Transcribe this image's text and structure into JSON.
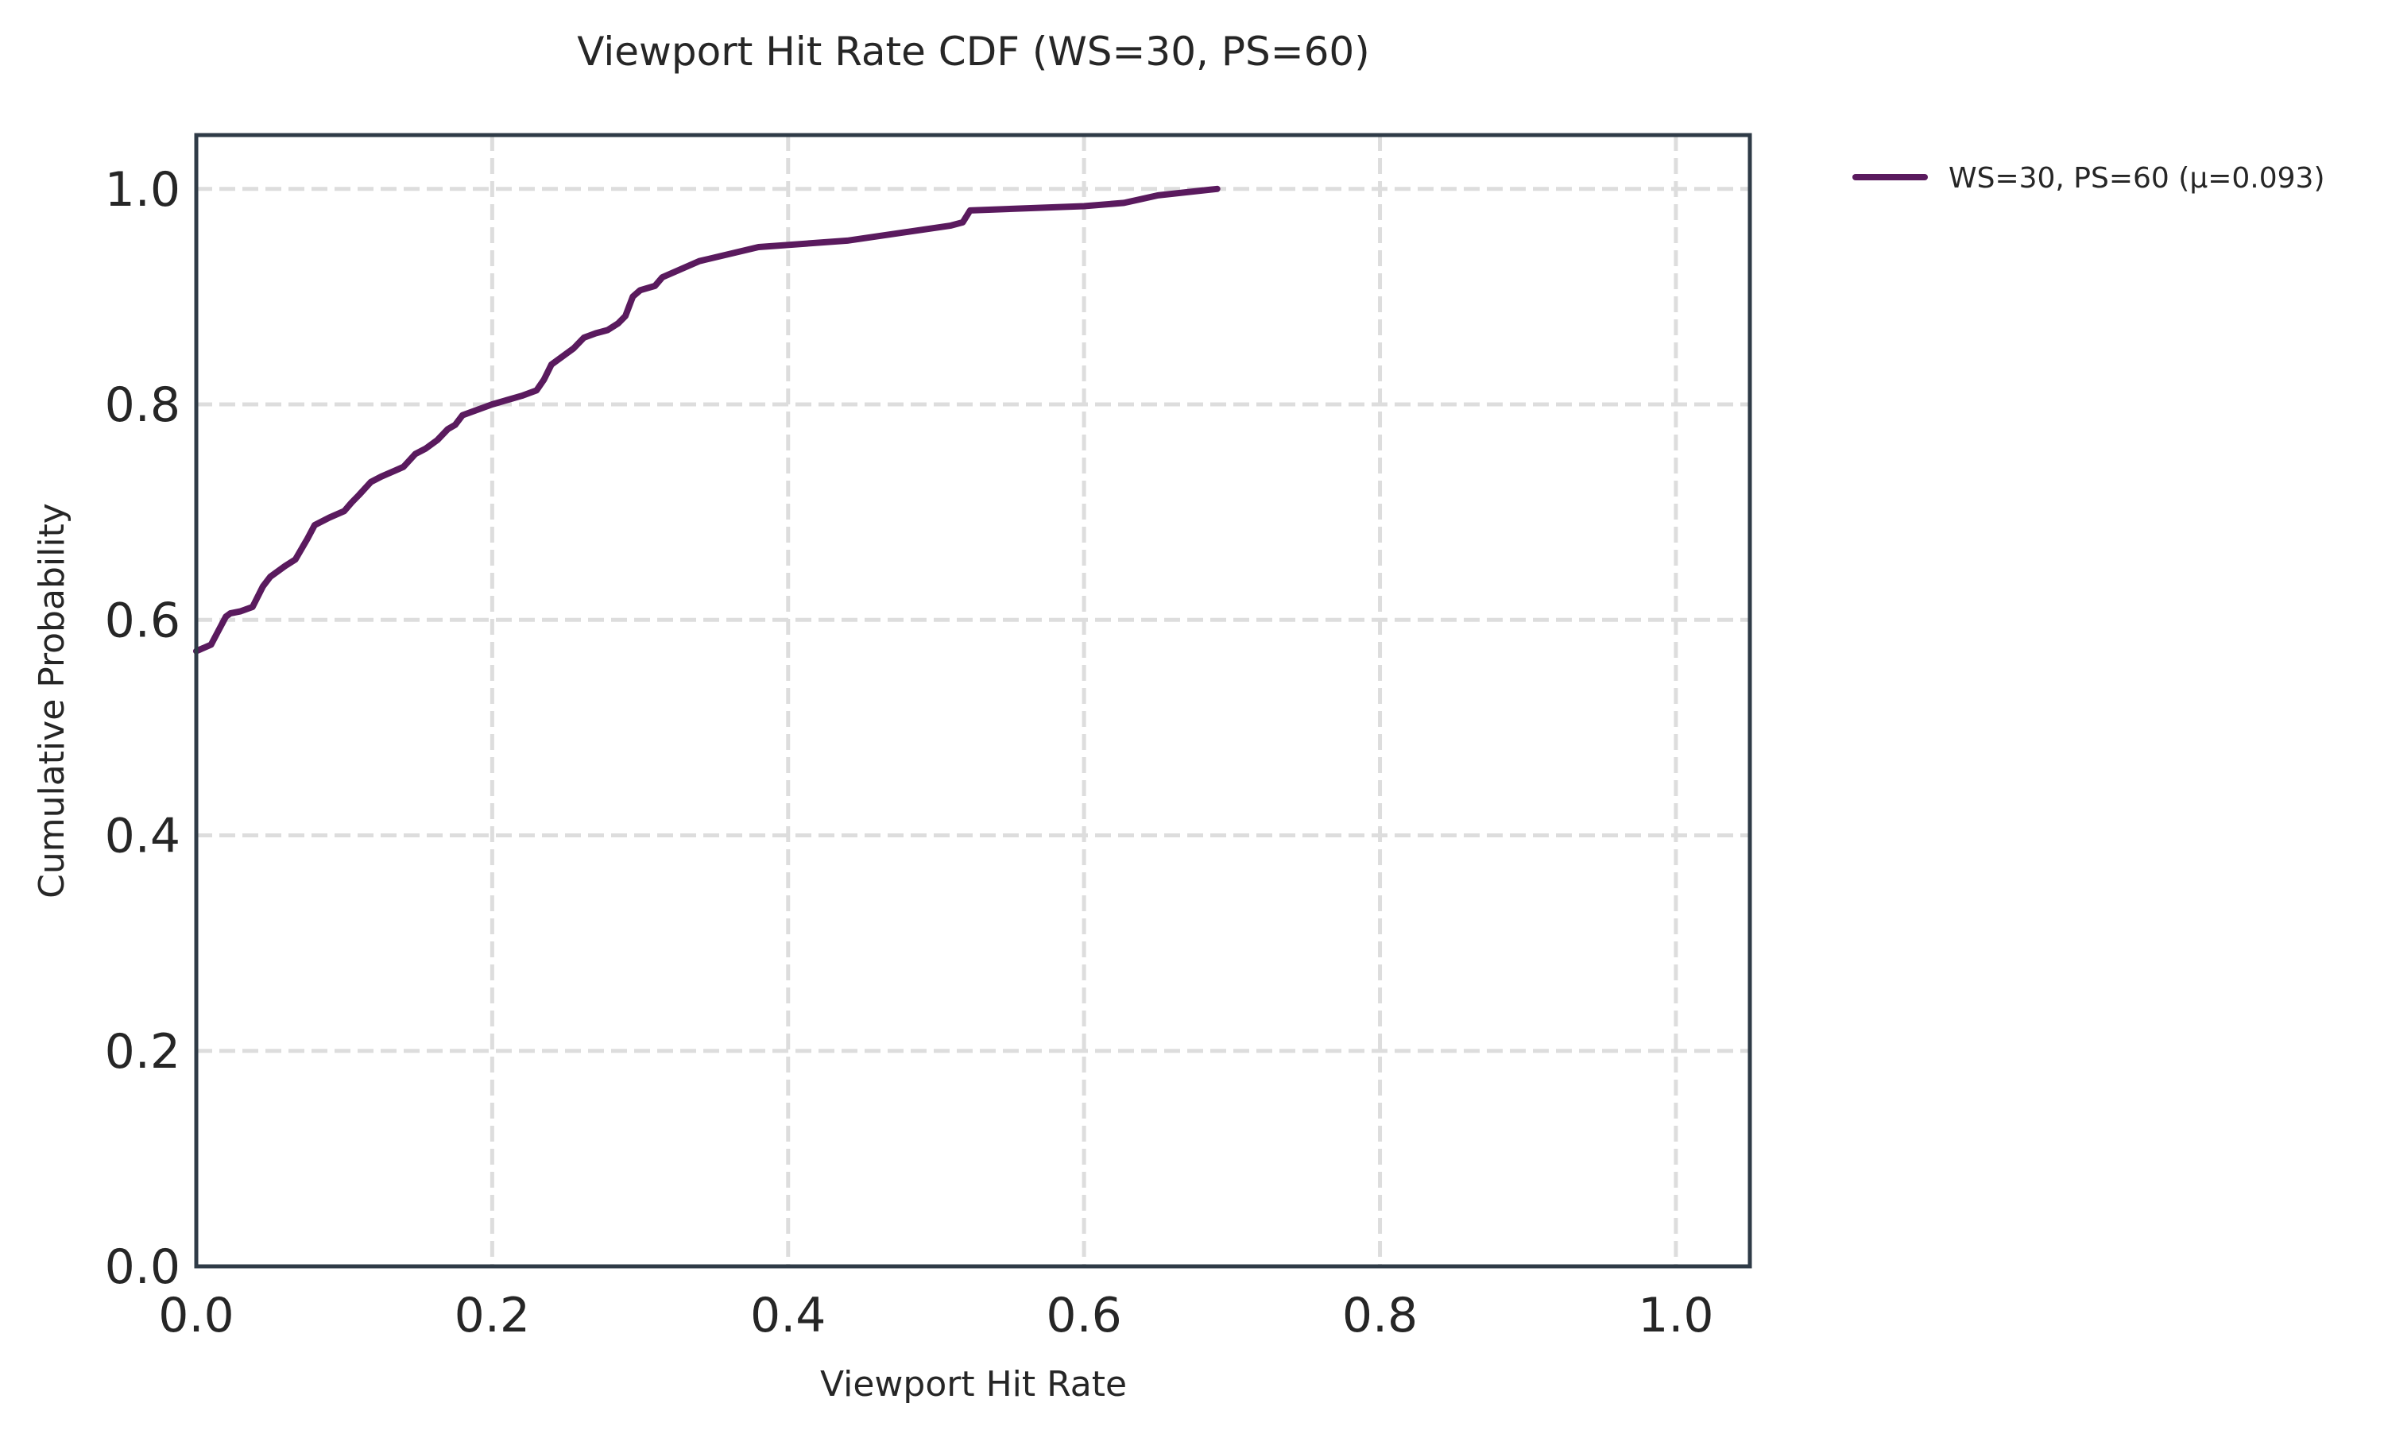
{
  "chart_data": {
    "type": "line",
    "title": "Viewport Hit Rate CDF (WS=30, PS=60)",
    "xlabel": "Viewport Hit Rate",
    "ylabel": "Cumulative Probability",
    "xlim": [
      0.0,
      1.05
    ],
    "ylim": [
      0.0,
      1.05
    ],
    "x_ticks": [
      "0.0",
      "0.2",
      "0.4",
      "0.6",
      "0.8",
      "1.0"
    ],
    "y_ticks": [
      "0.0",
      "0.2",
      "0.4",
      "0.6",
      "0.8",
      "1.0"
    ],
    "grid": true,
    "legend_position": "outside-upper-right",
    "series": [
      {
        "name": "WS=30, PS=60 (μ=0.093)",
        "color": "#5a1a5e",
        "x": [
          0.0,
          0.01,
          0.015,
          0.02,
          0.023,
          0.03,
          0.038,
          0.045,
          0.05,
          0.06,
          0.067,
          0.075,
          0.08,
          0.09,
          0.1,
          0.105,
          0.11,
          0.118,
          0.125,
          0.135,
          0.14,
          0.148,
          0.155,
          0.163,
          0.17,
          0.175,
          0.18,
          0.2,
          0.22,
          0.23,
          0.235,
          0.24,
          0.248,
          0.255,
          0.262,
          0.27,
          0.278,
          0.285,
          0.29,
          0.295,
          0.3,
          0.31,
          0.315,
          0.34,
          0.38,
          0.44,
          0.48,
          0.51,
          0.518,
          0.523,
          0.6,
          0.627,
          0.65,
          0.69
        ],
        "y": [
          0.571,
          0.577,
          0.59,
          0.603,
          0.606,
          0.608,
          0.612,
          0.631,
          0.64,
          0.65,
          0.656,
          0.675,
          0.688,
          0.695,
          0.701,
          0.709,
          0.716,
          0.728,
          0.733,
          0.739,
          0.742,
          0.754,
          0.759,
          0.767,
          0.777,
          0.781,
          0.79,
          0.8,
          0.808,
          0.813,
          0.823,
          0.837,
          0.845,
          0.852,
          0.862,
          0.866,
          0.869,
          0.875,
          0.882,
          0.9,
          0.906,
          0.91,
          0.918,
          0.933,
          0.946,
          0.952,
          0.96,
          0.966,
          0.969,
          0.98,
          0.984,
          0.987,
          0.994,
          1.0
        ]
      }
    ]
  }
}
